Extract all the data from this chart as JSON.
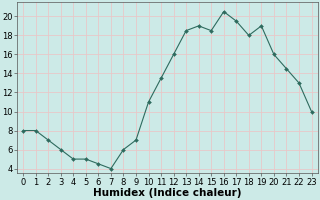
{
  "x": [
    0,
    1,
    2,
    3,
    4,
    5,
    6,
    7,
    8,
    9,
    10,
    11,
    12,
    13,
    14,
    15,
    16,
    17,
    18,
    19,
    20,
    21,
    22,
    23
  ],
  "y": [
    8,
    8,
    7,
    6,
    5,
    5,
    4.5,
    4,
    6,
    7,
    11,
    13.5,
    16,
    18.5,
    19,
    18.5,
    20.5,
    19.5,
    18,
    19,
    16,
    14.5,
    13,
    10
  ],
  "line_color": "#2e6b5e",
  "marker_color": "#2e6b5e",
  "bg_color": "#cceae7",
  "grid_color": "#e8c8c8",
  "xlabel": "Humidex (Indice chaleur)",
  "xlabel_fontsize": 7.5,
  "xlabel_bold": true,
  "ylim": [
    3.5,
    21.5
  ],
  "xlim": [
    -0.5,
    23.5
  ],
  "yticks": [
    4,
    6,
    8,
    10,
    12,
    14,
    16,
    18,
    20
  ],
  "xticks": [
    0,
    1,
    2,
    3,
    4,
    5,
    6,
    7,
    8,
    9,
    10,
    11,
    12,
    13,
    14,
    15,
    16,
    17,
    18,
    19,
    20,
    21,
    22,
    23
  ],
  "tick_fontsize": 6,
  "figsize": [
    3.2,
    2.0
  ],
  "dpi": 100
}
